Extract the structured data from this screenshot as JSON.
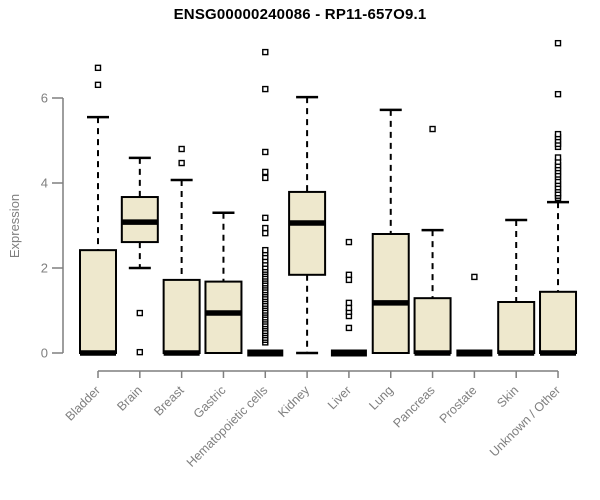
{
  "chart_data": {
    "type": "boxplot",
    "title": "ENSG00000240086 - RP11-657O9.1",
    "ylabel": "Expression",
    "xlabel": "",
    "ylim": [
      0,
      7.4
    ],
    "yticks": [
      0,
      2,
      4,
      6
    ],
    "grid": false,
    "legend": "none",
    "colors": {
      "box_fill": "#EEE8CD",
      "box_stroke": "#000000",
      "median": "#000000",
      "axis": "#7f7f7f",
      "tick_label": "#7f7f7f",
      "title": "#000000",
      "outlier_fill": "#ffffff"
    },
    "categories": [
      "Bladder",
      "Brain",
      "Breast",
      "Gastric",
      "Hematopoietic cells",
      "Kidney",
      "Liver",
      "Lung",
      "Pancreas",
      "Prostate",
      "Skin",
      "Unknown / Other"
    ],
    "series": [
      {
        "name": "Bladder",
        "whisker_low": 0,
        "q1": 0,
        "median": 0,
        "q3": 2.42,
        "whisker_high": 5.55,
        "outliers": [
          6.31,
          6.71
        ]
      },
      {
        "name": "Brain",
        "whisker_low": 2.0,
        "q1": 2.61,
        "median": 3.08,
        "q3": 3.67,
        "whisker_high": 4.59,
        "outliers": [
          0.94,
          0.02
        ]
      },
      {
        "name": "Breast",
        "whisker_low": 0,
        "q1": 0,
        "median": 0,
        "q3": 1.72,
        "whisker_high": 4.07,
        "outliers": [
          4.47,
          4.8
        ]
      },
      {
        "name": "Gastric",
        "whisker_low": 0,
        "q1": 0,
        "median": 0.94,
        "q3": 1.68,
        "whisker_high": 3.3,
        "outliers": []
      },
      {
        "name": "Hematopoietic cells",
        "whisker_low": 0,
        "q1": 0,
        "median": 0,
        "q3": 0,
        "whisker_high": 0,
        "outliers": [
          0.25,
          0.31,
          0.36,
          0.42,
          0.47,
          0.52,
          0.58,
          0.63,
          0.68,
          0.74,
          0.79,
          0.84,
          0.9,
          0.95,
          1.0,
          1.06,
          1.11,
          1.16,
          1.22,
          1.27,
          1.32,
          1.38,
          1.43,
          1.48,
          1.54,
          1.59,
          1.64,
          1.7,
          1.75,
          1.8,
          1.86,
          1.91,
          1.96,
          2.02,
          2.1,
          2.18,
          2.26,
          2.35,
          2.42,
          2.82,
          2.94,
          3.18,
          4.12,
          4.26,
          4.73,
          6.21,
          7.08
        ]
      },
      {
        "name": "Kidney",
        "whisker_low": 0,
        "q1": 1.84,
        "median": 3.06,
        "q3": 3.79,
        "whisker_high": 6.02,
        "outliers": []
      },
      {
        "name": "Liver",
        "whisker_low": 0,
        "q1": 0,
        "median": 0,
        "q3": 0,
        "whisker_high": 0,
        "outliers": [
          0.59,
          0.87,
          0.97,
          1.06,
          1.18,
          1.72,
          1.84,
          2.61
        ]
      },
      {
        "name": "Lung",
        "whisker_low": 0,
        "q1": 0,
        "median": 1.18,
        "q3": 2.8,
        "whisker_high": 5.72,
        "outliers": []
      },
      {
        "name": "Pancreas",
        "whisker_low": 0,
        "q1": 0,
        "median": 0,
        "q3": 1.29,
        "whisker_high": 2.89,
        "outliers": [
          5.27
        ]
      },
      {
        "name": "Prostate",
        "whisker_low": 0,
        "q1": 0,
        "median": 0,
        "q3": 0,
        "whisker_high": 0,
        "outliers": [
          1.79
        ]
      },
      {
        "name": "Skin",
        "whisker_low": 0,
        "q1": 0,
        "median": 0,
        "q3": 1.2,
        "whisker_high": 3.13,
        "outliers": []
      },
      {
        "name": "Unknown / Other",
        "whisker_low": 0,
        "q1": 0,
        "median": 0,
        "q3": 1.44,
        "whisker_high": 3.55,
        "outliers": [
          3.65,
          3.7,
          3.76,
          3.84,
          3.9,
          3.98,
          4.05,
          4.14,
          4.2,
          4.28,
          4.35,
          4.42,
          4.5,
          4.6,
          4.85,
          4.92,
          5.0,
          5.08,
          5.15,
          6.09,
          7.29
        ]
      }
    ]
  }
}
